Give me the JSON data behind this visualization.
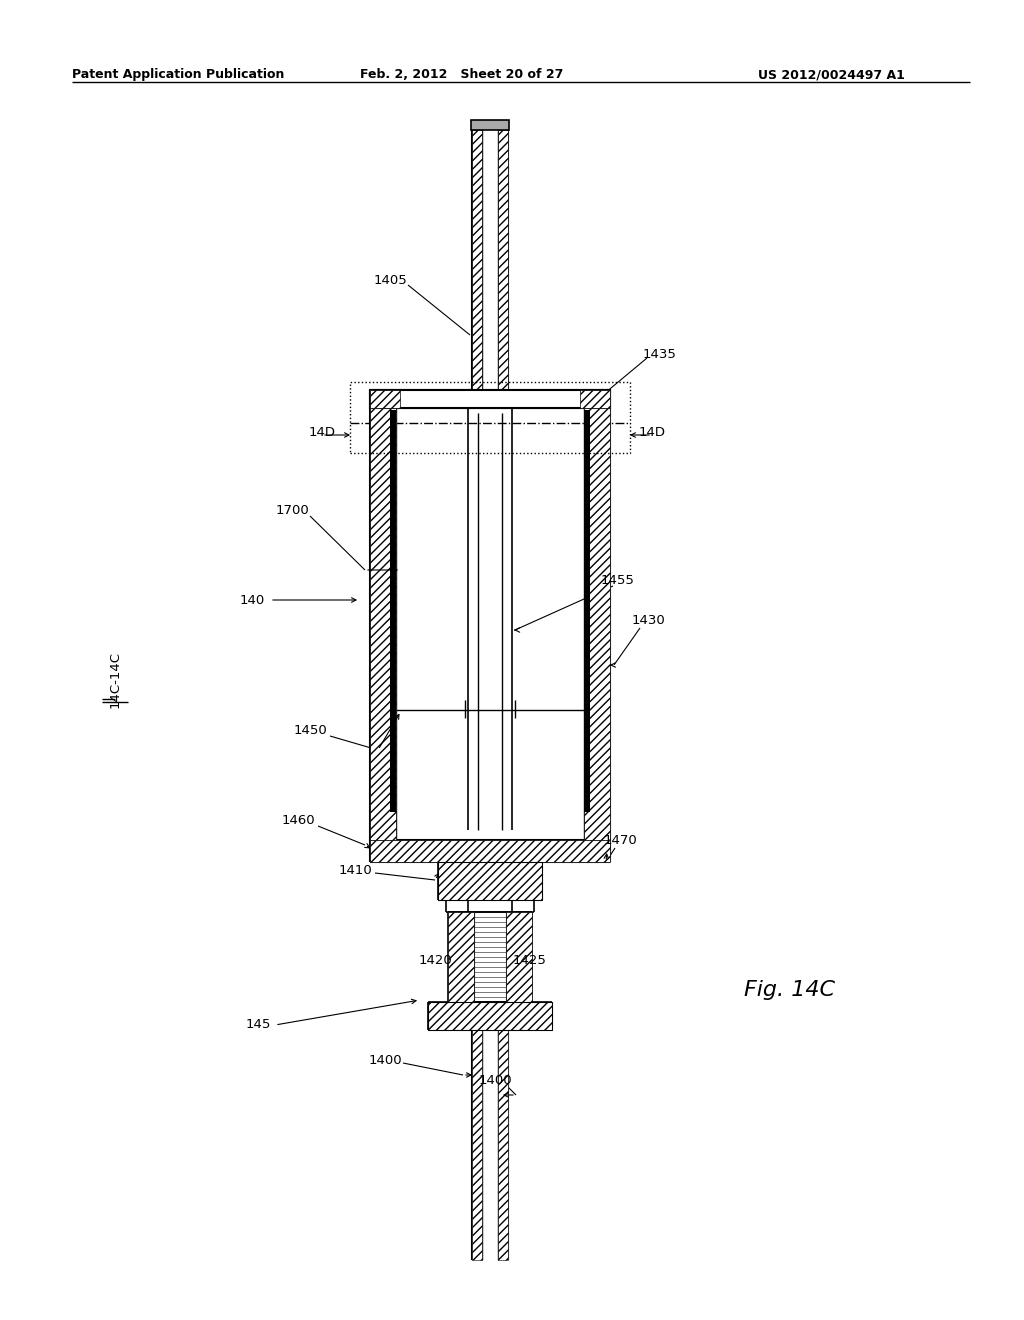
{
  "bg_color": "#ffffff",
  "header_left": "Patent Application Publication",
  "header_mid": "Feb. 2, 2012   Sheet 20 of 27",
  "header_right": "US 2012/0024497 A1",
  "fig_label": "Fig. 14C"
}
